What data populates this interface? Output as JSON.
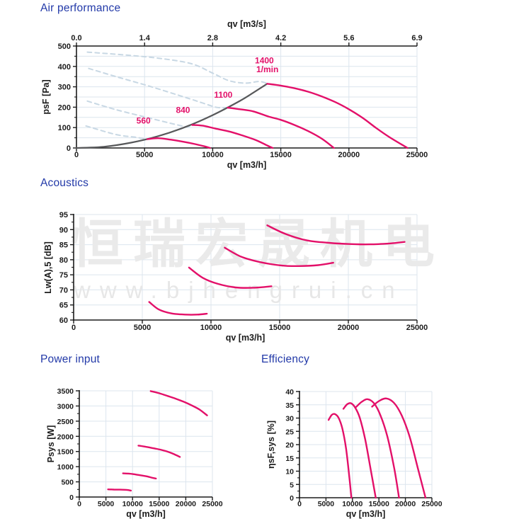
{
  "colors": {
    "title": "#2239a8",
    "curve": "#e31069",
    "dashed": "#c8d8e4",
    "system": "#57585a",
    "grid": "#dce5ee",
    "axis": "#1b1b1b",
    "watermark1": "#eaeaea",
    "watermark2": "#e7e7e7"
  },
  "watermark": {
    "line1": "恒瑞宏晟机电",
    "line2": "www.bjhengrui.cn"
  },
  "chart_data": [
    {
      "id": "air",
      "type": "line",
      "title": "Air performance",
      "xlabel": "qv [m3/h]",
      "x2label": "qv [m3/s]",
      "ylabel": "psF [Pa]",
      "xlim": [
        0,
        25000
      ],
      "ylim": [
        0,
        500
      ],
      "xticks": [
        0,
        5000,
        10000,
        15000,
        20000,
        25000
      ],
      "x2ticks": [
        "0.0",
        "1.4",
        "2.8",
        "4.2",
        "5.6",
        "6.9"
      ],
      "yticks": [
        0,
        100,
        200,
        300,
        400,
        500
      ],
      "ygrid": 50,
      "yminor": 50,
      "series": [
        {
          "key": "stall-1400",
          "name": "1400 1/min stall region",
          "style": "dashed",
          "points": [
            [
              800,
              470
            ],
            [
              3800,
              455
            ],
            [
              6400,
              437
            ],
            [
              8500,
              412
            ],
            [
              10000,
              367
            ],
            [
              11200,
              330
            ],
            [
              12400,
              318
            ],
            [
              13400,
              326
            ],
            [
              14000,
              317
            ]
          ]
        },
        {
          "key": "stall-1100",
          "name": "1100 1/min stall region",
          "style": "dashed",
          "points": [
            [
              900,
              390
            ],
            [
              2900,
              350
            ],
            [
              5400,
              302
            ],
            [
              7900,
              250
            ],
            [
              9200,
              222
            ],
            [
              10300,
              199
            ],
            [
              11050,
              198
            ]
          ]
        },
        {
          "key": "stall-840",
          "name": "840 1/min stall region",
          "style": "dashed",
          "points": [
            [
              800,
              230
            ],
            [
              2900,
              188
            ],
            [
              5400,
              146
            ],
            [
              7300,
              115
            ],
            [
              8100,
              104
            ],
            [
              8500,
              113
            ]
          ]
        },
        {
          "key": "stall-560",
          "name": "560 1/min stall region",
          "style": "dashed",
          "points": [
            [
              700,
              108
            ],
            [
              2900,
              66
            ],
            [
              4400,
              52
            ],
            [
              5200,
              43
            ]
          ]
        },
        {
          "key": "system-curve",
          "name": "system resistance curve",
          "style": "system",
          "points": [
            [
              0,
              0
            ],
            [
              2000,
              6
            ],
            [
              4000,
              26
            ],
            [
              6000,
              58
            ],
            [
              8000,
              103
            ],
            [
              10000,
              161
            ],
            [
              12000,
              231
            ],
            [
              13000,
              272
            ],
            [
              14000,
              315
            ]
          ]
        },
        {
          "key": "560",
          "name": "560 1/min",
          "style": "solid",
          "points": [
            [
              5200,
              43
            ],
            [
              6000,
              48
            ],
            [
              6900,
              41
            ],
            [
              7800,
              31
            ],
            [
              8700,
              19
            ],
            [
              9400,
              8
            ],
            [
              9800,
              0
            ]
          ]
        },
        {
          "key": "840",
          "name": "840 1/min",
          "style": "solid",
          "points": [
            [
              8500,
              113
            ],
            [
              9300,
              109
            ],
            [
              10200,
              95
            ],
            [
              11200,
              81
            ],
            [
              12200,
              61
            ],
            [
              13200,
              38
            ],
            [
              14000,
              12
            ],
            [
              14400,
              0
            ]
          ]
        },
        {
          "key": "1100",
          "name": "1100 1/min",
          "style": "solid",
          "points": [
            [
              11100,
              198
            ],
            [
              12000,
              190
            ],
            [
              13000,
              179
            ],
            [
              14100,
              154
            ],
            [
              15000,
              138
            ],
            [
              16000,
              113
            ],
            [
              17000,
              83
            ],
            [
              18000,
              46
            ],
            [
              18900,
              0
            ]
          ]
        },
        {
          "key": "1400",
          "name": "1400 1/min",
          "style": "solid",
          "points": [
            [
              14000,
              315
            ],
            [
              15000,
              306
            ],
            [
              16000,
              293
            ],
            [
              17000,
              276
            ],
            [
              18000,
              253
            ],
            [
              19000,
              225
            ],
            [
              20000,
              190
            ],
            [
              21000,
              148
            ],
            [
              22000,
              98
            ],
            [
              23000,
              52
            ],
            [
              24300,
              0
            ]
          ]
        }
      ],
      "annotations": [
        {
          "text": "560",
          "x": 4400,
          "y": 120
        },
        {
          "text": "840",
          "x": 7300,
          "y": 172
        },
        {
          "text": "1100",
          "x": 10100,
          "y": 247
        },
        {
          "text": "1400",
          "x": 13100,
          "y": 415
        },
        {
          "text": "1/min",
          "x": 13200,
          "y": 372
        }
      ]
    },
    {
      "id": "acoustics",
      "type": "line",
      "title": "Acoustics",
      "xlabel": "qv [m3/h]",
      "ylabel": "Lw(A),5 [dB]",
      "xlim": [
        0,
        25000
      ],
      "ylim": [
        60,
        95
      ],
      "xticks": [
        0,
        5000,
        10000,
        15000,
        20000,
        25000
      ],
      "yticks": [
        60,
        65,
        70,
        75,
        80,
        85,
        90,
        95
      ],
      "ygrid": 5,
      "yminor": 2.5,
      "series": [
        {
          "key": "560",
          "name": "560 1/min",
          "style": "solid",
          "points": [
            [
              5500,
              66
            ],
            [
              6200,
              63.5
            ],
            [
              7100,
              62.2
            ],
            [
              8100,
              61.8
            ],
            [
              9000,
              61.8
            ],
            [
              9700,
              62.1
            ]
          ]
        },
        {
          "key": "840",
          "name": "840 1/min",
          "style": "solid",
          "points": [
            [
              8400,
              77.4
            ],
            [
              9400,
              74
            ],
            [
              10500,
              72
            ],
            [
              11800,
              70.8
            ],
            [
              13100,
              70.7
            ],
            [
              14400,
              71.2
            ]
          ]
        },
        {
          "key": "1100",
          "name": "1100 1/min",
          "style": "solid",
          "points": [
            [
              11000,
              84
            ],
            [
              12200,
              81
            ],
            [
              13600,
              79.2
            ],
            [
              15100,
              78.1
            ],
            [
              16400,
              77.9
            ],
            [
              17800,
              78.2
            ],
            [
              18900,
              79
            ]
          ]
        },
        {
          "key": "1400",
          "name": "1400 1/min",
          "style": "solid",
          "points": [
            [
              14100,
              91.4
            ],
            [
              15400,
              88.6
            ],
            [
              17000,
              86.4
            ],
            [
              18600,
              85.6
            ],
            [
              20100,
              85.2
            ],
            [
              21600,
              85.1
            ],
            [
              23000,
              85.4
            ],
            [
              24100,
              85.9
            ]
          ]
        }
      ],
      "annotations": []
    },
    {
      "id": "power",
      "type": "line",
      "title": "Power input",
      "xlabel": "qv [m3/h]",
      "ylabel": "Psys [W]",
      "xlim": [
        0,
        25000
      ],
      "ylim": [
        0,
        3500
      ],
      "xticks": [
        0,
        5000,
        10000,
        15000,
        20000,
        25000
      ],
      "yticks": [
        0,
        500,
        1000,
        1500,
        2000,
        2500,
        3000,
        3500
      ],
      "ygrid": 500,
      "yminor": 250,
      "series": [
        {
          "key": "560",
          "name": "560 1/min",
          "style": "solid",
          "points": [
            [
              5400,
              252
            ],
            [
              6500,
              246
            ],
            [
              7700,
              242
            ],
            [
              8900,
              235
            ],
            [
              9700,
              213
            ]
          ]
        },
        {
          "key": "840",
          "name": "840 1/min",
          "style": "solid",
          "points": [
            [
              8200,
              780
            ],
            [
              9500,
              768
            ],
            [
              11000,
              730
            ],
            [
              12500,
              685
            ],
            [
              13700,
              635
            ],
            [
              14400,
              608
            ]
          ]
        },
        {
          "key": "1100",
          "name": "1100 1/min",
          "style": "solid",
          "points": [
            [
              11100,
              1695
            ],
            [
              12500,
              1655
            ],
            [
              14000,
              1605
            ],
            [
              15500,
              1550
            ],
            [
              17000,
              1470
            ],
            [
              18200,
              1380
            ],
            [
              18900,
              1320
            ]
          ]
        },
        {
          "key": "1400",
          "name": "1400 1/min",
          "style": "solid",
          "points": [
            [
              13400,
              3490
            ],
            [
              15000,
              3420
            ],
            [
              16600,
              3330
            ],
            [
              18100,
              3240
            ],
            [
              19600,
              3140
            ],
            [
              21100,
              3020
            ],
            [
              22600,
              2880
            ],
            [
              24000,
              2690
            ]
          ]
        }
      ],
      "annotations": []
    },
    {
      "id": "efficiency",
      "type": "line",
      "title": "Efficiency",
      "xlabel": "qv [m3/h]",
      "ylabel": "ηsF,sys [%]",
      "xlim": [
        0,
        25000
      ],
      "ylim": [
        0,
        40
      ],
      "xticks": [
        0,
        5000,
        10000,
        15000,
        20000,
        25000
      ],
      "yticks": [
        0,
        5,
        10,
        15,
        20,
        25,
        30,
        35,
        40
      ],
      "ygrid": 5,
      "yminor": 2.5,
      "series": [
        {
          "key": "560",
          "name": "560 1/min",
          "style": "solid",
          "points": [
            [
              5500,
              29.3
            ],
            [
              6100,
              31.2
            ],
            [
              6700,
              31.5
            ],
            [
              7400,
              30
            ],
            [
              8100,
              26
            ],
            [
              8800,
              18.5
            ],
            [
              9400,
              8
            ],
            [
              9800,
              0
            ]
          ]
        },
        {
          "key": "840",
          "name": "840 1/min",
          "style": "solid",
          "points": [
            [
              8300,
              33.5
            ],
            [
              9000,
              35.2
            ],
            [
              9700,
              35.6
            ],
            [
              10500,
              34
            ],
            [
              11400,
              30
            ],
            [
              12400,
              22
            ],
            [
              13500,
              10
            ],
            [
              14400,
              0
            ]
          ]
        },
        {
          "key": "1100",
          "name": "1100 1/min",
          "style": "solid",
          "points": [
            [
              10700,
              34.2
            ],
            [
              11800,
              36.2
            ],
            [
              12900,
              37.1
            ],
            [
              14100,
              35.5
            ],
            [
              15300,
              31
            ],
            [
              16600,
              23
            ],
            [
              17900,
              11
            ],
            [
              18800,
              0
            ]
          ]
        },
        {
          "key": "1400",
          "name": "1400 1/min",
          "style": "solid",
          "points": [
            [
              13700,
              34.3
            ],
            [
              15000,
              36.4
            ],
            [
              16400,
              37.4
            ],
            [
              17900,
              35.6
            ],
            [
              19300,
              31
            ],
            [
              20800,
              23
            ],
            [
              22300,
              11.5
            ],
            [
              23800,
              0
            ]
          ]
        }
      ],
      "annotations": []
    }
  ]
}
